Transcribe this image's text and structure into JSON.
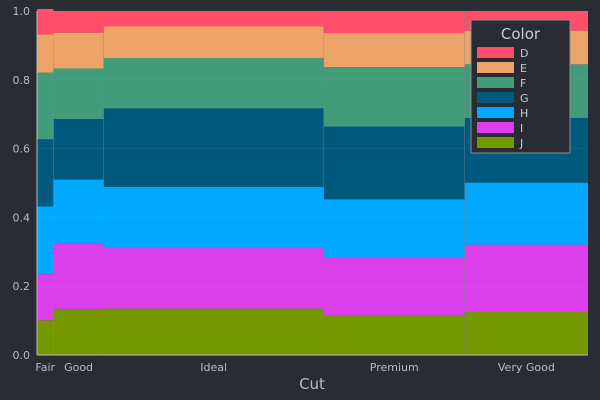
{
  "chart_data": {
    "type": "bar",
    "subtype": "mosaic",
    "xlabel": "Cut",
    "ylabel": "",
    "ylim": [
      0,
      1
    ],
    "yticks": [
      "0.0",
      "0.2",
      "0.4",
      "0.6",
      "0.8",
      "1.0"
    ],
    "categories": [
      "Fair",
      "Good",
      "Ideal",
      "Premium",
      "Very Good"
    ],
    "category_proportions": [
      0.03,
      0.091,
      0.4,
      0.256,
      0.224
    ],
    "legend": {
      "title": "Color",
      "position": "top-right"
    },
    "grid": true,
    "series": [
      {
        "name": "D",
        "color": "#ff4d6a",
        "values": [
          0.074,
          0.063,
          0.045,
          0.064,
          0.057
        ]
      },
      {
        "name": "E",
        "color": "#eda468",
        "values": [
          0.111,
          0.104,
          0.092,
          0.099,
          0.098
        ]
      },
      {
        "name": "F",
        "color": "#429b7a",
        "values": [
          0.194,
          0.147,
          0.146,
          0.173,
          0.156
        ]
      },
      {
        "name": "G",
        "color": "#015a7d",
        "values": [
          0.195,
          0.176,
          0.228,
          0.211,
          0.188
        ]
      },
      {
        "name": "H",
        "color": "#00a9ff",
        "values": [
          0.197,
          0.187,
          0.175,
          0.171,
          0.18
        ]
      },
      {
        "name": "I",
        "color": "#db3fec",
        "values": [
          0.134,
          0.189,
          0.179,
          0.167,
          0.196
        ]
      },
      {
        "name": "J",
        "color": "#759700",
        "values": [
          0.101,
          0.134,
          0.135,
          0.115,
          0.125
        ]
      }
    ]
  }
}
